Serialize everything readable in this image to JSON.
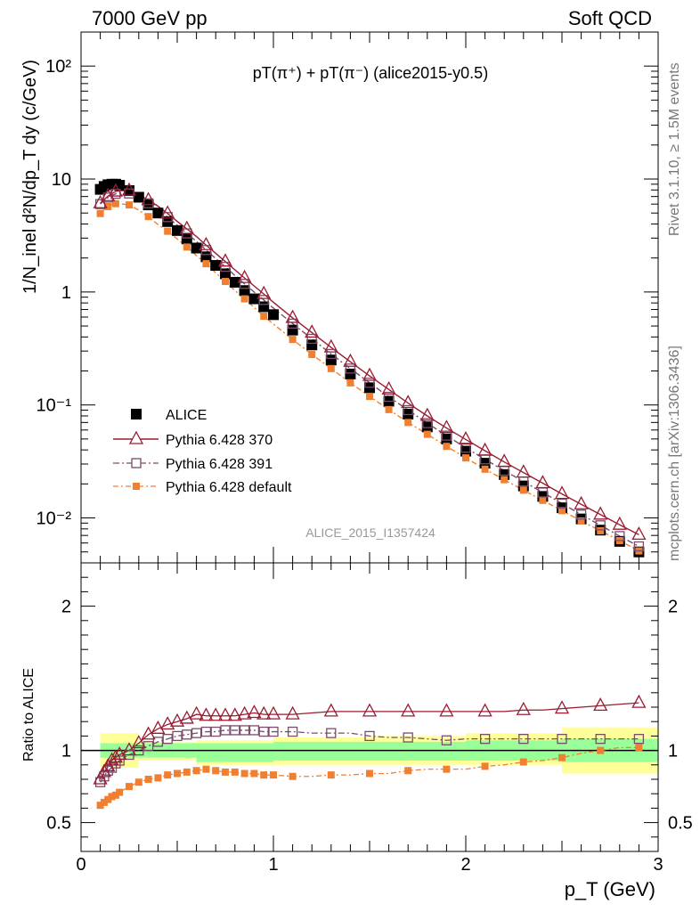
{
  "header": {
    "left": "7000 GeV pp",
    "right": "Soft QCD"
  },
  "side_labels": {
    "rivet": "Rivet 3.1.10, ≥ 1.5M events",
    "mcplots": "mcplots.cern.ch [arXiv:1306.3436]"
  },
  "analysis_id": "ALICE_2015_I1357424",
  "plot_title": "pT(π⁺) + pT(π⁻) (alice2015-y0.5)",
  "y_axis_label": "1/N_inel d²N/dp_T dy (c/GeV)",
  "x_axis_label": "p_T (GeV)",
  "ratio_label": "Ratio to ALICE",
  "chart_data": [
    {
      "type": "scatter",
      "panel": "main",
      "log_y": true,
      "xlim": [
        0,
        3.0
      ],
      "ylim": [
        0.004,
        200
      ],
      "x_ticks": [
        "0",
        "1",
        "2",
        "3"
      ],
      "y_ticks": [
        {
          "value": 0.01,
          "label": "10⁻²"
        },
        {
          "value": 0.1,
          "label": "10⁻¹"
        },
        {
          "value": 1,
          "label": "1"
        },
        {
          "value": 10,
          "label": "10"
        },
        {
          "value": 100,
          "label": "10²"
        }
      ],
      "legend_position": "left-middle",
      "x": [
        0.1,
        0.12,
        0.14,
        0.16,
        0.18,
        0.2,
        0.25,
        0.3,
        0.35,
        0.4,
        0.45,
        0.5,
        0.55,
        0.6,
        0.65,
        0.7,
        0.75,
        0.8,
        0.85,
        0.9,
        0.95,
        1.0,
        1.1,
        1.2,
        1.3,
        1.4,
        1.5,
        1.6,
        1.7,
        1.8,
        1.9,
        2.0,
        2.1,
        2.2,
        2.3,
        2.4,
        2.5,
        2.6,
        2.7,
        2.8,
        2.9
      ],
      "series": [
        {
          "name": "ALICE",
          "color": "#000000",
          "marker": "filled-square",
          "values": [
            8.1,
            8.6,
            8.9,
            9.0,
            9.0,
            8.8,
            7.9,
            6.9,
            5.9,
            5.0,
            4.2,
            3.5,
            2.95,
            2.45,
            2.05,
            1.72,
            1.45,
            1.22,
            1.03,
            0.87,
            0.74,
            0.63,
            0.46,
            0.34,
            0.25,
            0.188,
            0.142,
            0.108,
            0.083,
            0.064,
            0.05,
            0.039,
            0.0305,
            0.0242,
            0.0192,
            0.0155,
            0.0123,
            0.0098,
            0.0078,
            0.0062,
            0.005
          ]
        },
        {
          "name": "Pythia 6.428 370",
          "color": "#9b1b30",
          "marker": "open-triangle",
          "values": [
            6.1,
            6.6,
            7.05,
            7.45,
            7.75,
            7.9,
            7.9,
            7.25,
            6.5,
            5.75,
            4.95,
            4.22,
            3.62,
            3.1,
            2.6,
            2.2,
            1.86,
            1.57,
            1.33,
            1.13,
            0.96,
            0.81,
            0.59,
            0.437,
            0.323,
            0.241,
            0.181,
            0.137,
            0.104,
            0.08,
            0.0625,
            0.0495,
            0.0393,
            0.0313,
            0.0252,
            0.0203,
            0.0163,
            0.0132,
            0.0107,
            0.0087,
            0.0071
          ]
        },
        {
          "name": "Pythia 6.428 391",
          "color": "#7a4b6a",
          "marker": "open-square",
          "values": [
            6.0,
            6.45,
            6.85,
            7.15,
            7.4,
            7.5,
            7.45,
            6.85,
            6.1,
            5.35,
            4.6,
            3.9,
            3.3,
            2.8,
            2.35,
            1.98,
            1.67,
            1.4,
            1.18,
            1.0,
            0.85,
            0.72,
            0.525,
            0.385,
            0.283,
            0.21,
            0.157,
            0.118,
            0.09,
            0.069,
            0.0535,
            0.0418,
            0.033,
            0.0262,
            0.021,
            0.0168,
            0.0134,
            0.0107,
            0.0086,
            0.0069,
            0.0056
          ]
        },
        {
          "name": "Pythia 6.428 default",
          "color": "#f07f30",
          "marker": "filled-small-square",
          "values": [
            4.95,
            5.35,
            5.7,
            5.95,
            6.05,
            6.05,
            5.9,
            5.3,
            4.65,
            3.95,
            3.45,
            2.95,
            2.5,
            2.1,
            1.78,
            1.48,
            1.24,
            1.03,
            0.87,
            0.73,
            0.61,
            0.52,
            0.38,
            0.28,
            0.21,
            0.157,
            0.119,
            0.091,
            0.07,
            0.055,
            0.043,
            0.034,
            0.027,
            0.0218,
            0.0176,
            0.0143,
            0.0116,
            0.0094,
            0.0077,
            0.0063,
            0.0051
          ]
        }
      ]
    },
    {
      "type": "scatter",
      "panel": "ratio",
      "xlim": [
        0,
        3.0
      ],
      "ylim": [
        0.3,
        2.3
      ],
      "y_ticks": [
        {
          "value": 0.5,
          "label": "0.5"
        },
        {
          "value": 1,
          "label": "1"
        },
        {
          "value": 2,
          "label": "2"
        }
      ],
      "x_ticks": [
        "0",
        "1",
        "2",
        "3"
      ],
      "x": [
        0.1,
        0.12,
        0.14,
        0.16,
        0.18,
        0.2,
        0.25,
        0.3,
        0.35,
        0.4,
        0.45,
        0.5,
        0.55,
        0.6,
        0.65,
        0.7,
        0.75,
        0.8,
        0.85,
        0.9,
        0.95,
        1.0,
        1.1,
        1.2,
        1.3,
        1.4,
        1.5,
        1.6,
        1.7,
        1.8,
        1.9,
        2.0,
        2.1,
        2.2,
        2.3,
        2.4,
        2.5,
        2.6,
        2.7,
        2.8,
        2.9
      ],
      "bands": {
        "x_edges": [
          0.1,
          0.3,
          0.6,
          1.0,
          1.5,
          2.0,
          2.5,
          3.0
        ],
        "inner": [
          [
            0.95,
            1.05
          ],
          [
            0.95,
            1.05
          ],
          [
            0.92,
            1.05
          ],
          [
            0.93,
            1.06
          ],
          [
            0.93,
            1.06
          ],
          [
            0.93,
            1.07
          ],
          [
            0.92,
            1.08
          ]
        ],
        "outer": [
          [
            0.88,
            1.12
          ],
          [
            0.93,
            1.06
          ],
          [
            0.9,
            1.07
          ],
          [
            0.9,
            1.09
          ],
          [
            0.9,
            1.1
          ],
          [
            0.9,
            1.12
          ],
          [
            0.84,
            1.16
          ]
        ]
      },
      "series": [
        {
          "name": "Pythia 6.428 370",
          "values": [
            0.8,
            0.85,
            0.89,
            0.93,
            0.95,
            0.97,
            1.0,
            1.05,
            1.11,
            1.15,
            1.18,
            1.2,
            1.22,
            1.25,
            1.24,
            1.24,
            1.24,
            1.24,
            1.25,
            1.26,
            1.25,
            1.25,
            1.25,
            1.26,
            1.27,
            1.27,
            1.27,
            1.27,
            1.27,
            1.27,
            1.27,
            1.27,
            1.27,
            1.27,
            1.28,
            1.28,
            1.29,
            1.3,
            1.31,
            1.32,
            1.33
          ]
        },
        {
          "name": "Pythia 6.428 391",
          "values": [
            0.78,
            0.82,
            0.86,
            0.88,
            0.91,
            0.93,
            0.97,
            1.0,
            1.03,
            1.06,
            1.08,
            1.1,
            1.11,
            1.12,
            1.13,
            1.13,
            1.14,
            1.14,
            1.14,
            1.14,
            1.13,
            1.13,
            1.13,
            1.12,
            1.12,
            1.12,
            1.1,
            1.09,
            1.09,
            1.08,
            1.07,
            1.08,
            1.08,
            1.08,
            1.08,
            1.08,
            1.08,
            1.08,
            1.08,
            1.08,
            1.08
          ]
        },
        {
          "name": "Pythia 6.428 default",
          "values": [
            0.62,
            0.64,
            0.66,
            0.68,
            0.69,
            0.71,
            0.75,
            0.78,
            0.8,
            0.81,
            0.83,
            0.84,
            0.85,
            0.86,
            0.87,
            0.86,
            0.85,
            0.85,
            0.84,
            0.84,
            0.83,
            0.83,
            0.82,
            0.82,
            0.83,
            0.83,
            0.84,
            0.84,
            0.86,
            0.87,
            0.87,
            0.87,
            0.89,
            0.9,
            0.92,
            0.93,
            0.95,
            0.98,
            1.0,
            1.02,
            1.02
          ]
        }
      ]
    }
  ]
}
